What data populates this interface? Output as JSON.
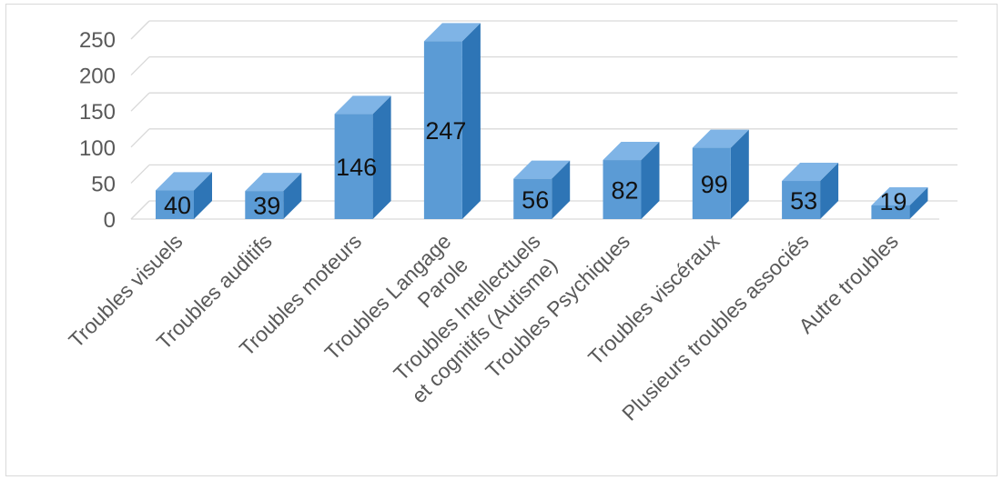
{
  "chart_data": {
    "type": "bar",
    "style": "3d-column",
    "categories": [
      [
        "Troubles visuels"
      ],
      [
        "Troubles auditifs"
      ],
      [
        "Troubles moteurs"
      ],
      [
        "Troubles Langage",
        "Parole"
      ],
      [
        "Troubles Intellectuels",
        "et cognitifs (Autisme)"
      ],
      [
        "Troubles Psychiques"
      ],
      [
        "Troubles viscéraux"
      ],
      [
        "Plusieurs troubles associés"
      ],
      [
        "Autre troubles"
      ]
    ],
    "values": [
      40,
      39,
      146,
      247,
      56,
      82,
      99,
      53,
      19
    ],
    "yticks": [
      "0",
      "50",
      "100",
      "150",
      "200",
      "250"
    ],
    "ylim": [
      0,
      250
    ],
    "grid": true,
    "legend": "none",
    "title": "",
    "xlabel": "",
    "ylabel": "",
    "colors": {
      "bar_front": "#5b9bd5",
      "bar_top": "#7fb4e6",
      "bar_side": "#2e75b6",
      "grid": "#d9d9d9",
      "axis_text": "#595959",
      "data_label": "#111111"
    }
  }
}
